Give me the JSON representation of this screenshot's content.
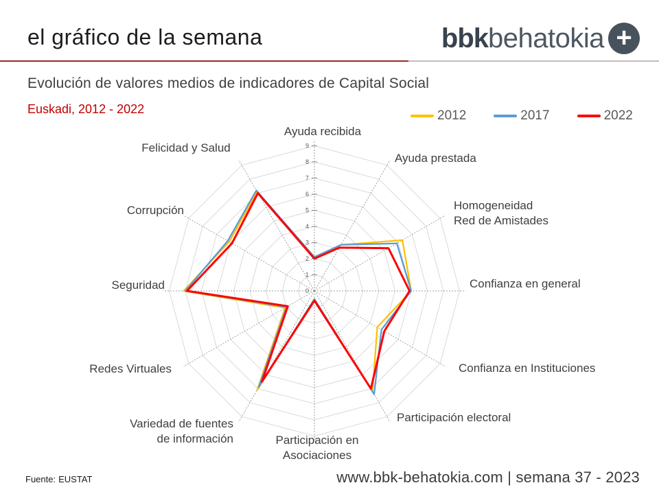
{
  "header": {
    "title": "el gráfico de la semana",
    "logo": {
      "bold": "bbk",
      "regular": "behatokia",
      "plus_glyph": "+"
    }
  },
  "chart_header": {
    "title": "Evolución de valores medios de indicadores de Capital Social",
    "subtitle": "Euskadi, 2012 - 2022"
  },
  "footer": {
    "source_label": "Fuente:",
    "source_value": "EUSTAT",
    "website": "www.bbk-behatokia.com | semana 37 - 2023"
  },
  "chart_data": {
    "type": "radar",
    "title": "Evolución de valores medios de indicadores de Capital Social",
    "subtitle": "Euskadi, 2012 - 2022",
    "categories": [
      "Ayuda recibida",
      "Ayuda prestada",
      "Homogeneidad\nRed de Amistades",
      "Confianza en general",
      "Confianza en Instituciones",
      "Participación electoral",
      "Participación en\nAsociaciones",
      "Variedad de fuentes\nde información",
      "Redes Virtuales",
      "Seguridad",
      "Corrupción",
      "Felicidad y Salud"
    ],
    "series": [
      {
        "name": "2012",
        "color": "#FFC000",
        "values": [
          2.1,
          3.3,
          6.3,
          6.0,
          4.5,
          7.2,
          0.5,
          7.1,
          2.1,
          8.1,
          6.1,
          7.1
        ]
      },
      {
        "name": "2017",
        "color": "#5B9BD5",
        "values": [
          2.1,
          3.3,
          5.9,
          6.0,
          4.8,
          7.4,
          0.5,
          6.9,
          2.0,
          8.0,
          6.2,
          7.2
        ]
      },
      {
        "name": "2022",
        "color": "#FF0000",
        "values": [
          2.0,
          3.1,
          5.3,
          5.9,
          5.0,
          7.0,
          0.6,
          6.5,
          1.9,
          7.9,
          5.9,
          7.0
        ]
      }
    ],
    "ylim": [
      0,
      9
    ],
    "tick_labels": [
      "0",
      "1",
      "2",
      "3",
      "4",
      "5",
      "6",
      "7",
      "8",
      "9"
    ],
    "grid": true,
    "legend_position": "top-right",
    "grid_color": "#d9d9d9",
    "spoke_color": "#9e9e9e",
    "tick_color": "#595959"
  }
}
